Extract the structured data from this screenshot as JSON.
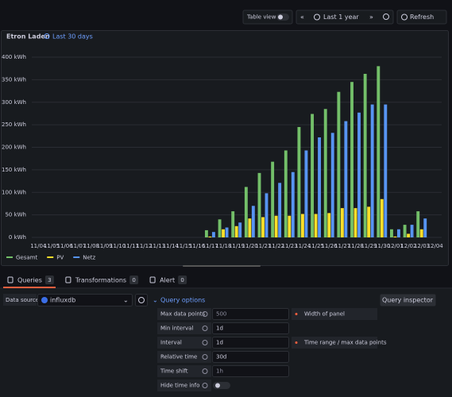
{
  "toolbar": {
    "table_view": "Table view",
    "time_range": "Last 1 year",
    "refresh": "Refresh"
  },
  "panel": {
    "title": "Etron Laden",
    "time_info": "Last 30 days"
  },
  "chart_data": {
    "type": "bar",
    "categories": [
      "11/04",
      "11/05",
      "11/06",
      "11/07",
      "11/08",
      "11/09",
      "11/10",
      "11/11",
      "11/12",
      "11/13",
      "11/14",
      "11/15",
      "11/16",
      "11/17",
      "11/18",
      "11/19",
      "11/20",
      "11/21",
      "11/22",
      "11/23",
      "11/24",
      "11/25",
      "11/26",
      "11/27",
      "11/28",
      "11/29",
      "11/30",
      "12/01",
      "12/02",
      "12/03",
      "12/04"
    ],
    "series": [
      {
        "name": "Gesamt",
        "color": "#73bf69",
        "values": [
          0,
          0,
          0,
          0,
          0,
          0,
          0,
          0,
          0,
          0,
          0,
          0,
          0,
          16,
          40,
          58,
          112,
          143,
          168,
          193,
          245,
          274,
          285,
          323,
          345,
          363,
          380,
          18,
          28,
          58,
          0
        ]
      },
      {
        "name": "PV",
        "color": "#fade2a",
        "values": [
          0,
          0,
          0,
          0,
          0,
          0,
          0,
          0,
          0,
          0,
          0,
          0,
          0,
          2,
          18,
          25,
          42,
          45,
          48,
          48,
          52,
          52,
          54,
          65,
          65,
          68,
          85,
          2,
          8,
          18,
          0
        ]
      },
      {
        "name": "Netz",
        "color": "#5794f2",
        "values": [
          0,
          0,
          0,
          0,
          0,
          0,
          0,
          0,
          0,
          0,
          0,
          0,
          0,
          12,
          22,
          33,
          70,
          98,
          121,
          145,
          193,
          222,
          232,
          258,
          277,
          295,
          295,
          18,
          28,
          42,
          0
        ]
      }
    ],
    "ylim": [
      0,
      400
    ],
    "yticks": [
      {
        "value": 0,
        "label": "0 kWh"
      },
      {
        "value": 50,
        "label": "50 kWh"
      },
      {
        "value": 100,
        "label": "100 kWh"
      },
      {
        "value": 150,
        "label": "150 kWh"
      },
      {
        "value": 200,
        "label": "200 kWh"
      },
      {
        "value": 250,
        "label": "250 kWh"
      },
      {
        "value": 300,
        "label": "300 kWh"
      },
      {
        "value": 350,
        "label": "350 kWh"
      },
      {
        "value": 400,
        "label": "400 kWh"
      }
    ],
    "grid": true
  },
  "tabs": [
    {
      "label": "Queries",
      "count": "3"
    },
    {
      "label": "Transformations",
      "count": "0"
    },
    {
      "label": "Alert",
      "count": "0"
    }
  ],
  "query": {
    "data_source_label": "Data source",
    "data_source": "influxdb",
    "options_title": "Query options",
    "inspector": "Query inspector",
    "options": [
      {
        "label": "Max data points",
        "value": "500",
        "hint": "Width of panel"
      },
      {
        "label": "Min interval",
        "value": "1d"
      },
      {
        "label": "Interval",
        "value": "1d",
        "hint": "Time range / max data points"
      },
      {
        "label": "Relative time",
        "value": "30d"
      },
      {
        "label": "Time shift",
        "value": "1h"
      },
      {
        "label": "Hide time info"
      }
    ]
  }
}
